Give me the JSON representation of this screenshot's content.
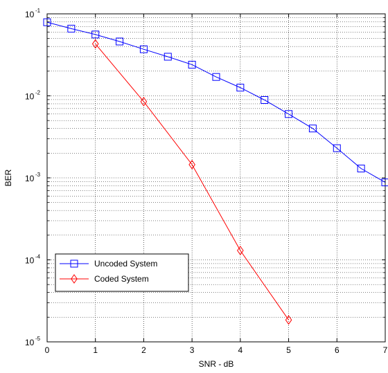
{
  "chart_data": {
    "type": "line",
    "xlabel": "SNR - dB",
    "ylabel": "BER",
    "xlim": [
      0,
      7
    ],
    "ylim": [
      1e-05,
      0.1
    ],
    "yscale": "log",
    "grid": true,
    "legend_position": "bottom-left",
    "x_tick_labels": [
      "0",
      "1",
      "2",
      "3",
      "4",
      "5",
      "6",
      "7"
    ],
    "y_tick_labels": [
      {
        "base": "10",
        "exp": "-1",
        "value": 0.1
      },
      {
        "base": "10",
        "exp": "-2",
        "value": 0.01
      },
      {
        "base": "10",
        "exp": "-3",
        "value": 0.001
      },
      {
        "base": "10",
        "exp": "-4",
        "value": 0.0001
      },
      {
        "base": "10",
        "exp": "-5",
        "value": 1e-05
      }
    ],
    "series": [
      {
        "name": "Uncoded System",
        "color": "#0000ff",
        "marker": "square",
        "x": [
          0,
          0.5,
          1,
          1.5,
          2,
          2.5,
          3,
          3.5,
          4,
          4.5,
          5,
          5.5,
          6,
          6.5,
          7
        ],
        "y": [
          0.079,
          0.066,
          0.056,
          0.046,
          0.037,
          0.03,
          0.024,
          0.017,
          0.0126,
          0.0089,
          0.006,
          0.004,
          0.0023,
          0.0013,
          0.00088
        ]
      },
      {
        "name": "Coded System",
        "color": "#ff0000",
        "marker": "diamond",
        "x": [
          1,
          2,
          3,
          4,
          5
        ],
        "y": [
          0.043,
          0.0085,
          0.00145,
          0.00013,
          1.85e-05
        ]
      }
    ]
  }
}
